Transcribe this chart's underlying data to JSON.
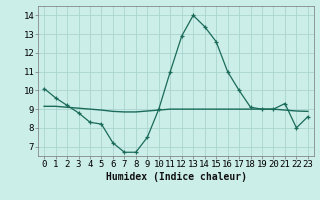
{
  "xlabel": "Humidex (Indice chaleur)",
  "background_color": "#cceee8",
  "grid_color": "#aad4ce",
  "line_color": "#1a6b5a",
  "xlim": [
    -0.5,
    23.5
  ],
  "ylim": [
    6.5,
    14.5
  ],
  "xticks": [
    0,
    1,
    2,
    3,
    4,
    5,
    6,
    7,
    8,
    9,
    10,
    11,
    12,
    13,
    14,
    15,
    16,
    17,
    18,
    19,
    20,
    21,
    22,
    23
  ],
  "yticks": [
    7,
    8,
    9,
    10,
    11,
    12,
    13,
    14
  ],
  "x": [
    0,
    1,
    2,
    3,
    4,
    5,
    6,
    7,
    8,
    9,
    10,
    11,
    12,
    13,
    14,
    15,
    16,
    17,
    18,
    19,
    20,
    21,
    22,
    23
  ],
  "y_main": [
    10.1,
    9.6,
    9.2,
    8.8,
    8.3,
    8.2,
    7.2,
    6.7,
    6.7,
    7.5,
    9.0,
    11.0,
    12.9,
    14.0,
    13.4,
    12.6,
    11.0,
    10.0,
    9.1,
    9.0,
    9.0,
    9.3,
    8.0,
    8.6
  ],
  "y_flat": [
    9.15,
    9.15,
    9.1,
    9.05,
    9.0,
    8.95,
    8.88,
    8.85,
    8.85,
    8.9,
    8.95,
    9.0,
    9.0,
    9.0,
    9.0,
    9.0,
    9.0,
    9.0,
    9.0,
    9.0,
    9.0,
    8.95,
    8.9,
    8.88
  ],
  "xlabel_fontsize": 7,
  "tick_fontsize": 6.5
}
